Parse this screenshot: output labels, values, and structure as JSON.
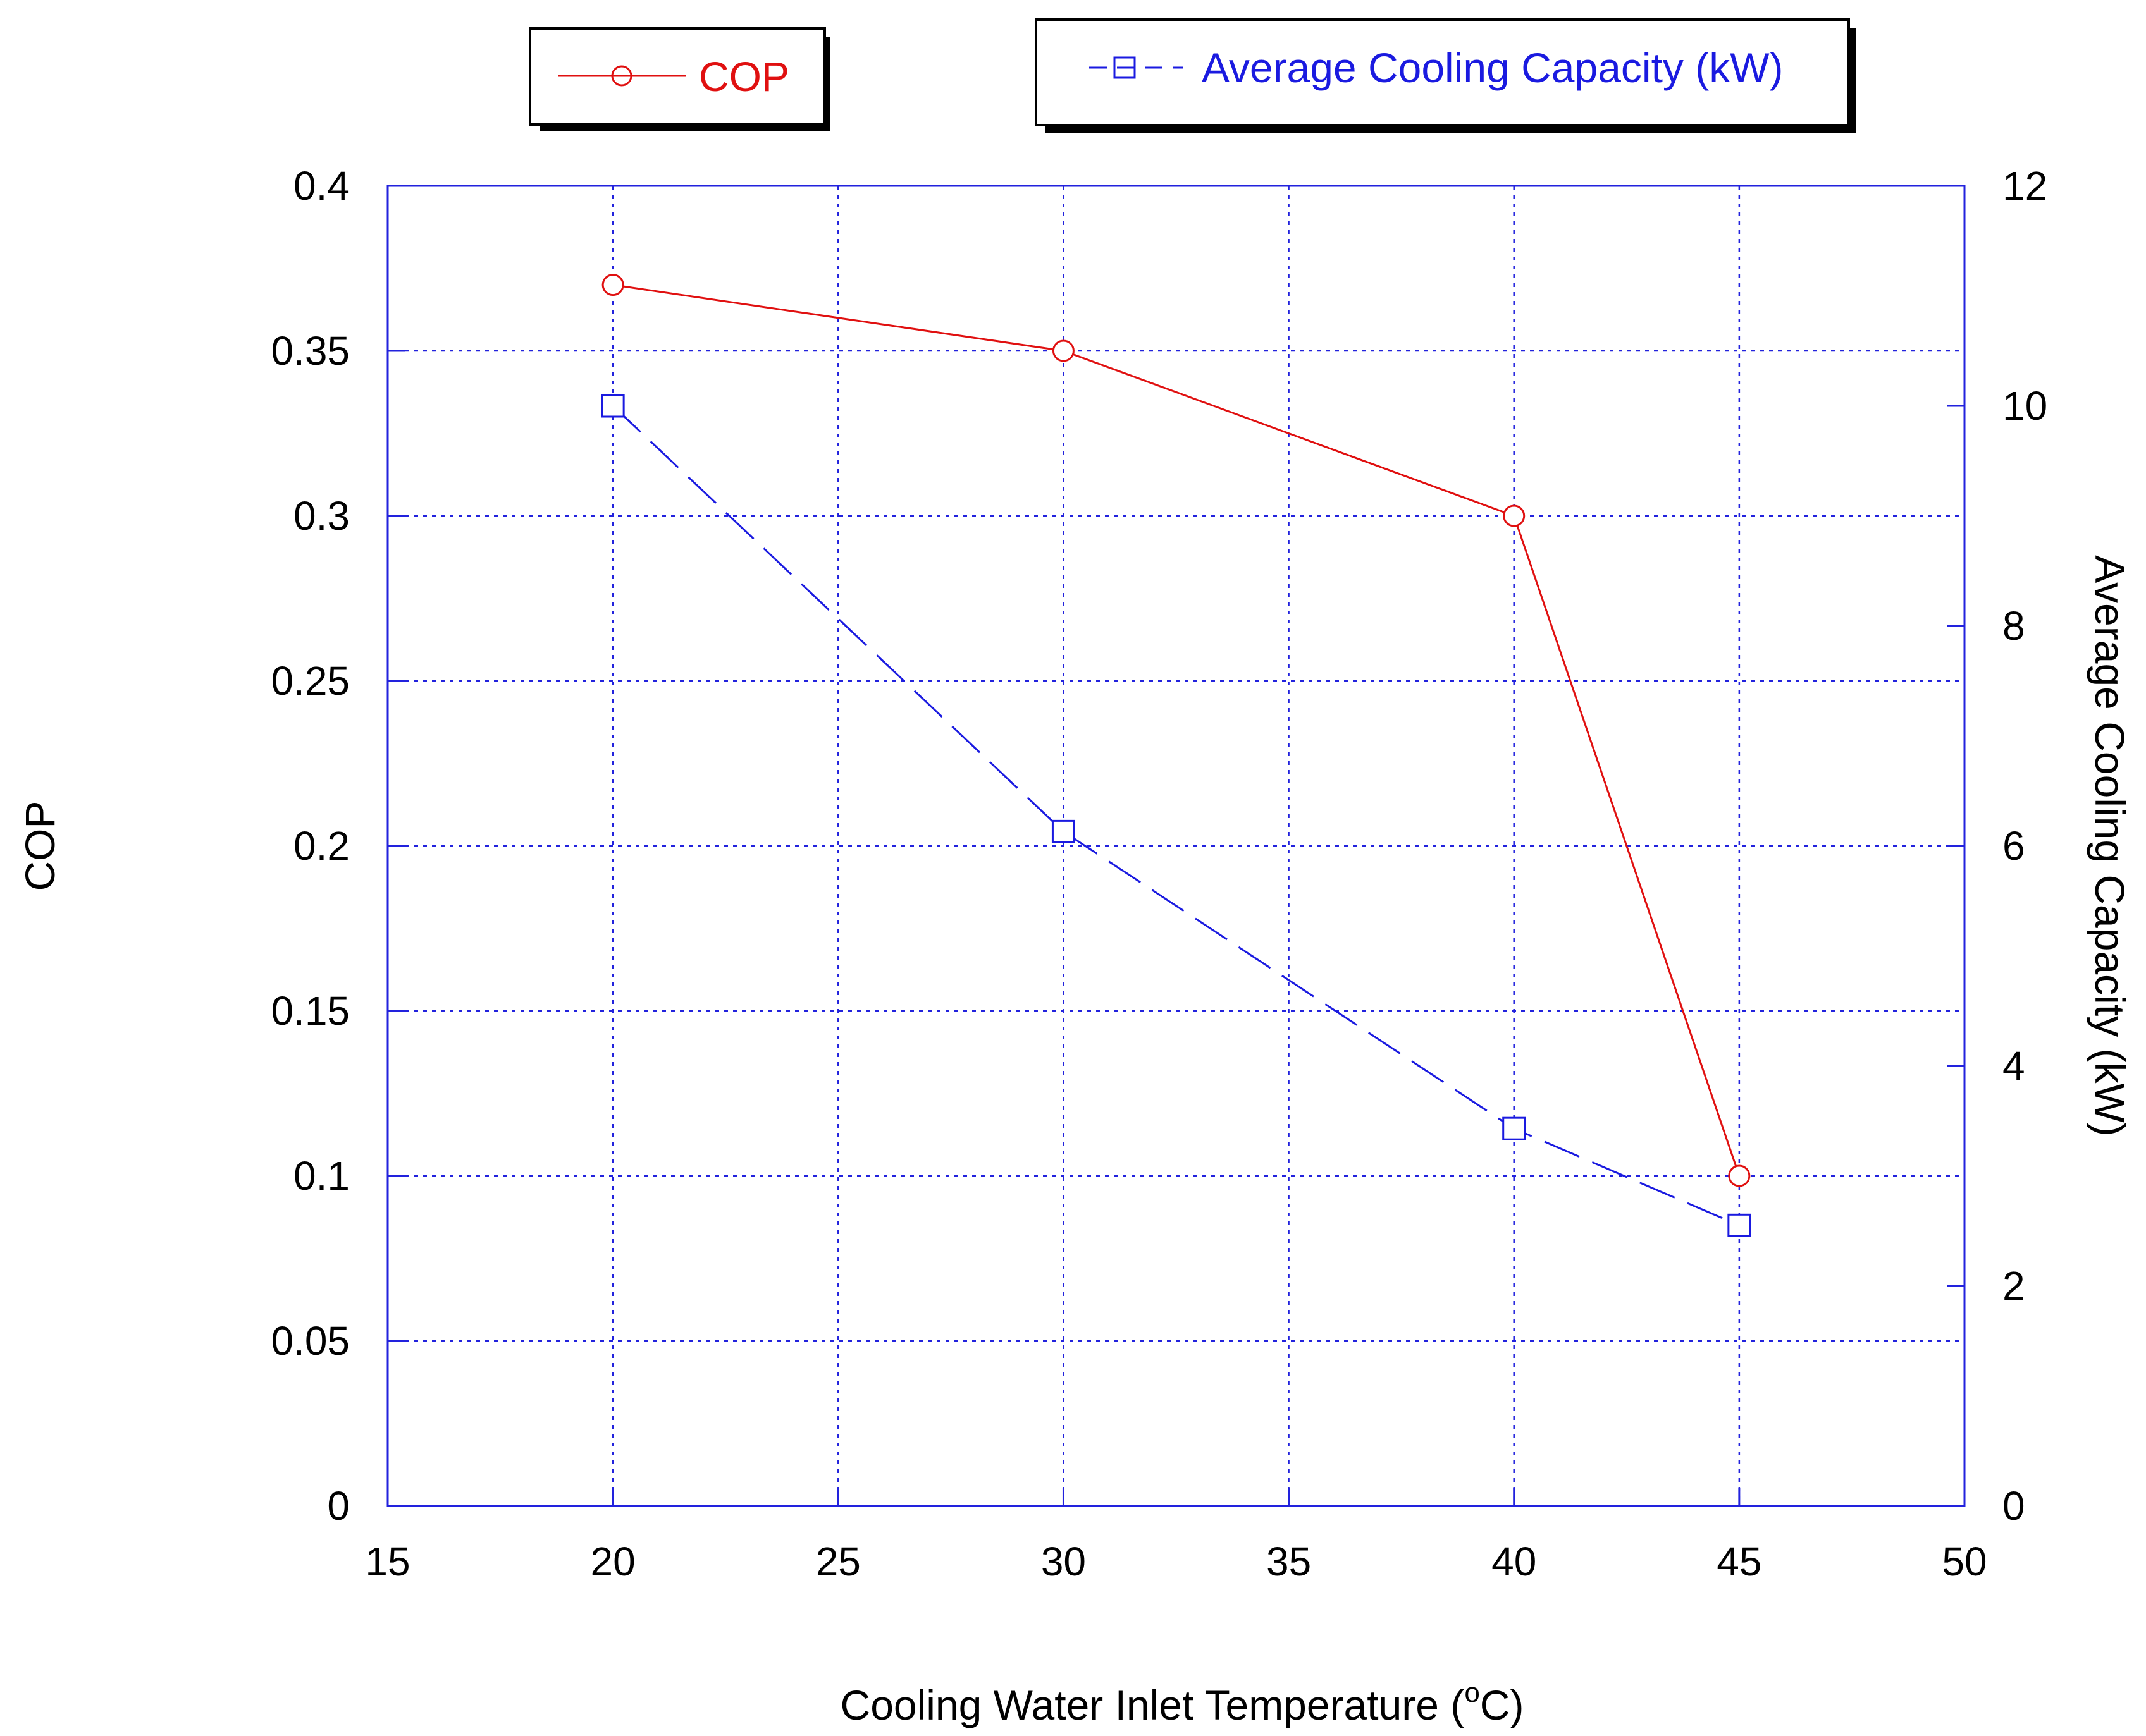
{
  "chart_data": {
    "type": "line",
    "title": "",
    "xlabel_main": "Cooling Water Inlet Temperature (",
    "xlabel_sup": "o",
    "xlabel_end": "C)",
    "ylabel_left": "COP",
    "ylabel_right": "Average Cooling Capacity (kW)",
    "xlim": [
      15,
      50
    ],
    "ylim_left": [
      0,
      0.4
    ],
    "ylim_right": [
      0,
      12
    ],
    "x_ticks": [
      15,
      20,
      25,
      30,
      35,
      40,
      45,
      50
    ],
    "x_tick_labels": [
      "15",
      "20",
      "25",
      "30",
      "35",
      "40",
      "45",
      "50"
    ],
    "y_left_ticks": [
      0,
      0.05,
      0.1,
      0.15,
      0.2,
      0.25,
      0.3,
      0.35,
      0.4
    ],
    "y_left_tick_labels": [
      "0",
      "0.05",
      "0.1",
      "0.15",
      "0.2",
      "0.25",
      "0.3",
      "0.35",
      "0.4"
    ],
    "y_right_ticks": [
      0,
      2,
      4,
      6,
      8,
      10,
      12
    ],
    "y_right_tick_labels": [
      "0",
      "2",
      "4",
      "6",
      "8",
      "10",
      "12"
    ],
    "grid": true,
    "series": [
      {
        "name": "COP",
        "axis": "left",
        "marker": "circle",
        "line_style": "solid",
        "color": "#e01010",
        "x": [
          20,
          30,
          40,
          45
        ],
        "values": [
          0.37,
          0.35,
          0.3,
          0.1
        ]
      },
      {
        "name": "Average Cooling Capacity (kW)",
        "axis": "right",
        "marker": "square",
        "line_style": "dashed",
        "color": "#1a1ae0",
        "x": [
          20,
          30,
          40,
          45
        ],
        "values": [
          10.0,
          6.13,
          3.43,
          2.55
        ]
      }
    ],
    "legend_position": "top"
  },
  "colors": {
    "axis": "#2222dd",
    "grid": "#2222dd",
    "text": "#000000"
  }
}
